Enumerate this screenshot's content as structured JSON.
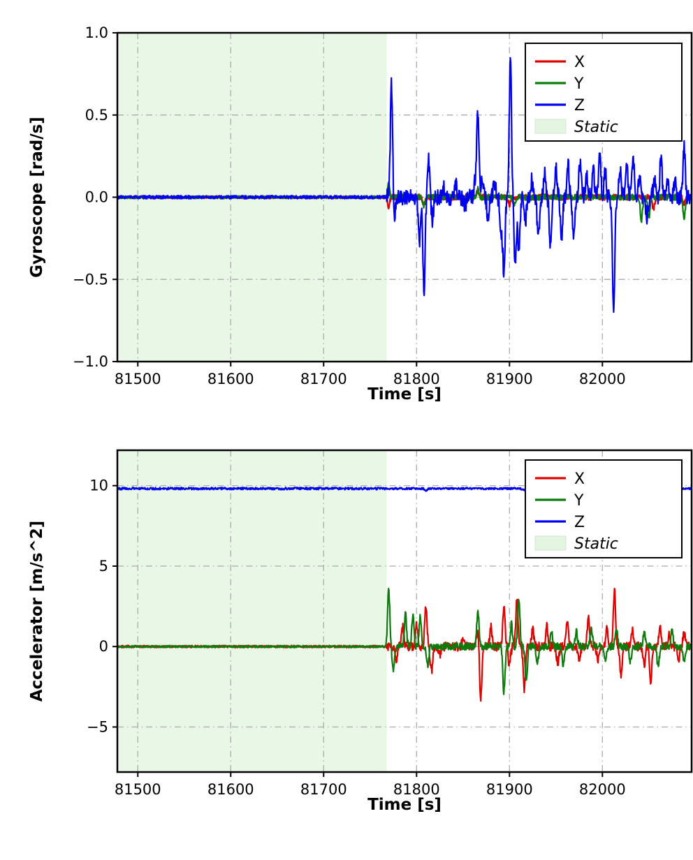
{
  "figure": {
    "background": "#ffffff",
    "grid_color": "#b0b0b0",
    "spine_color": "#000000"
  },
  "chart_data": [
    {
      "type": "line",
      "title": "",
      "xlabel": "Time [s]",
      "ylabel": "Gyroscope [rad/s]",
      "xlim": [
        81478,
        82096
      ],
      "ylim": [
        -1.0,
        1.0
      ],
      "xticks": [
        81500,
        81600,
        81700,
        81800,
        81900,
        82000
      ],
      "xtick_labels": [
        "81500",
        "81600",
        "81700",
        "81800",
        "81900",
        "82000"
      ],
      "yticks": [
        1.0,
        0.5,
        0.0,
        -0.5,
        -1.0
      ],
      "ytick_labels": [
        "1.0",
        "0.5",
        "0.0",
        "−0.5",
        "−1.0"
      ],
      "grid": "dashdot",
      "legend": {
        "position": "upper right",
        "entries": [
          {
            "label": "X",
            "color": "#e00000",
            "type": "line",
            "italic": false
          },
          {
            "label": "Y",
            "color": "#0b7c0b",
            "type": "line",
            "italic": false
          },
          {
            "label": "Z",
            "color": "#0000f0",
            "type": "line",
            "italic": false
          },
          {
            "label": "Static",
            "color": "#e4f5e2",
            "type": "patch",
            "italic": true
          }
        ]
      },
      "static_region": {
        "start": 81478,
        "end": 81768,
        "color": "#e9f7e7",
        "label": "Static"
      },
      "series": [
        {
          "name": "X",
          "color": "#e00000",
          "baseline": 0,
          "noise_pre": 0.008,
          "noise_post": 0.018,
          "event_start": 81768,
          "spike_width": 1.7,
          "seed": 11,
          "spikes": [
            [
              81770,
              -0.06
            ],
            [
              81808,
              -0.05
            ],
            [
              81866,
              0.04
            ],
            [
              81900,
              -0.05
            ],
            [
              82055,
              -0.07
            ],
            [
              82088,
              -0.04
            ]
          ]
        },
        {
          "name": "Y",
          "color": "#0b7c0b",
          "baseline": 0,
          "noise_pre": 0.008,
          "noise_post": 0.018,
          "event_start": 81768,
          "spike_width": 1.7,
          "seed": 22,
          "spikes": [
            [
              81770,
              0.08
            ],
            [
              81808,
              -0.06
            ],
            [
              81866,
              0.05
            ],
            [
              81905,
              -0.06
            ],
            [
              82042,
              -0.14
            ],
            [
              82050,
              -0.12
            ],
            [
              82088,
              -0.12
            ]
          ]
        },
        {
          "name": "Z",
          "color": "#0000f0",
          "baseline": 0,
          "noise_pre": 0.01,
          "noise_post": 0.05,
          "event_start": 81768,
          "spike_width": 1.7,
          "seed": 33,
          "spikes": [
            [
              81773,
              0.7
            ],
            [
              81776,
              -0.12
            ],
            [
              81803,
              -0.28
            ],
            [
              81808,
              -0.58
            ],
            [
              81813,
              0.22
            ],
            [
              81817,
              -0.14
            ],
            [
              81830,
              0.06
            ],
            [
              81842,
              0.08
            ],
            [
              81852,
              -0.06
            ],
            [
              81863,
              0.1
            ],
            [
              81866,
              0.52
            ],
            [
              81871,
              0.12
            ],
            [
              81877,
              -0.12
            ],
            [
              81884,
              0.08
            ],
            [
              81891,
              -0.2
            ],
            [
              81894,
              -0.45
            ],
            [
              81901,
              0.83
            ],
            [
              81906,
              -0.4
            ],
            [
              81910,
              -0.35
            ],
            [
              81917,
              -0.15
            ],
            [
              81924,
              0.1
            ],
            [
              81931,
              -0.26
            ],
            [
              81938,
              0.14
            ],
            [
              81944,
              -0.3
            ],
            [
              81950,
              0.18
            ],
            [
              81956,
              -0.28
            ],
            [
              81963,
              0.2
            ],
            [
              81969,
              -0.25
            ],
            [
              81976,
              0.22
            ],
            [
              81983,
              0.12
            ],
            [
              81990,
              0.18
            ],
            [
              81997,
              0.25
            ],
            [
              82003,
              0.15
            ],
            [
              82012,
              -0.72
            ],
            [
              82019,
              0.18
            ],
            [
              82026,
              0.22
            ],
            [
              82033,
              0.26
            ],
            [
              82040,
              0.14
            ],
            [
              82048,
              -0.12
            ],
            [
              82056,
              0.1
            ],
            [
              82063,
              0.24
            ],
            [
              82070,
              0.12
            ],
            [
              82078,
              0.1
            ],
            [
              82088,
              0.3
            ]
          ]
        }
      ]
    },
    {
      "type": "line",
      "title": "",
      "xlabel": "Time [s]",
      "ylabel": "Accelerator [m/s^2]",
      "xlim": [
        81478,
        82096
      ],
      "ylim": [
        -7.8,
        12.2
      ],
      "xticks": [
        81500,
        81600,
        81700,
        81800,
        81900,
        82000
      ],
      "xtick_labels": [
        "81500",
        "81600",
        "81700",
        "81800",
        "81900",
        "82000"
      ],
      "yticks": [
        10,
        5,
        0,
        -5
      ],
      "ytick_labels": [
        "10",
        "5",
        "0",
        "−5"
      ],
      "grid": "dashdot",
      "legend": {
        "position": "upper right",
        "entries": [
          {
            "label": "X",
            "color": "#e00000",
            "type": "line",
            "italic": false
          },
          {
            "label": "Y",
            "color": "#0b7c0b",
            "type": "line",
            "italic": false
          },
          {
            "label": "Z",
            "color": "#0000f0",
            "type": "line",
            "italic": false
          },
          {
            "label": "Static",
            "color": "#e4f5e2",
            "type": "patch",
            "italic": true
          }
        ]
      },
      "static_region": {
        "start": 81478,
        "end": 81768,
        "color": "#e9f7e7",
        "label": "Static"
      },
      "series": [
        {
          "name": "X",
          "color": "#e00000",
          "baseline": 0,
          "noise_pre": 0.07,
          "noise_post": 0.28,
          "event_start": 81768,
          "spike_width": 1.7,
          "seed": 44,
          "spikes": [
            [
              81778,
              -0.8
            ],
            [
              81785,
              1.2
            ],
            [
              81800,
              1.5
            ],
            [
              81810,
              2.5
            ],
            [
              81816,
              -1.6
            ],
            [
              81825,
              -0.5
            ],
            [
              81850,
              0.5
            ],
            [
              81866,
              1.0
            ],
            [
              81869,
              -3.2
            ],
            [
              81880,
              1.2
            ],
            [
              81894,
              2.6
            ],
            [
              81900,
              -1.2
            ],
            [
              81908,
              2.9
            ],
            [
              81916,
              -2.7
            ],
            [
              81925,
              1.0
            ],
            [
              81940,
              1.3
            ],
            [
              81952,
              -1.1
            ],
            [
              81962,
              1.6
            ],
            [
              81975,
              -1.0
            ],
            [
              81985,
              1.9
            ],
            [
              81995,
              -0.8
            ],
            [
              82005,
              1.2
            ],
            [
              82013,
              3.5
            ],
            [
              82020,
              -1.8
            ],
            [
              82032,
              1.1
            ],
            [
              82045,
              -1.2
            ],
            [
              82052,
              -2.1
            ],
            [
              82062,
              1.1
            ],
            [
              82072,
              0.8
            ],
            [
              82082,
              -1.0
            ],
            [
              82088,
              0.9
            ]
          ]
        },
        {
          "name": "Y",
          "color": "#0b7c0b",
          "baseline": 0,
          "noise_pre": 0.06,
          "noise_post": 0.22,
          "event_start": 81768,
          "spike_width": 1.7,
          "seed": 55,
          "spikes": [
            [
              81770,
              3.5
            ],
            [
              81775,
              -1.5
            ],
            [
              81788,
              2.0
            ],
            [
              81796,
              1.9
            ],
            [
              81804,
              1.8
            ],
            [
              81812,
              -1.2
            ],
            [
              81866,
              2.2
            ],
            [
              81894,
              -2.8
            ],
            [
              81902,
              1.4
            ],
            [
              81910,
              3.0
            ],
            [
              81918,
              -2.3
            ],
            [
              81930,
              -1.0
            ],
            [
              81945,
              1.0
            ],
            [
              81958,
              -1.2
            ],
            [
              81972,
              0.9
            ],
            [
              81988,
              1.1
            ],
            [
              82003,
              -0.9
            ],
            [
              82015,
              1.2
            ],
            [
              82030,
              -1.0
            ],
            [
              82045,
              0.9
            ],
            [
              82060,
              -1.3
            ],
            [
              82075,
              1.0
            ],
            [
              82088,
              -0.9
            ]
          ]
        },
        {
          "name": "Z",
          "color": "#0000f0",
          "baseline": 9.82,
          "noise_pre": 0.07,
          "noise_post": 0.06,
          "event_start": 81768,
          "spike_width": 1.7,
          "seed": 66,
          "spikes": [
            [
              81810,
              -0.15
            ],
            [
              81915,
              -0.1
            ]
          ]
        }
      ]
    }
  ]
}
